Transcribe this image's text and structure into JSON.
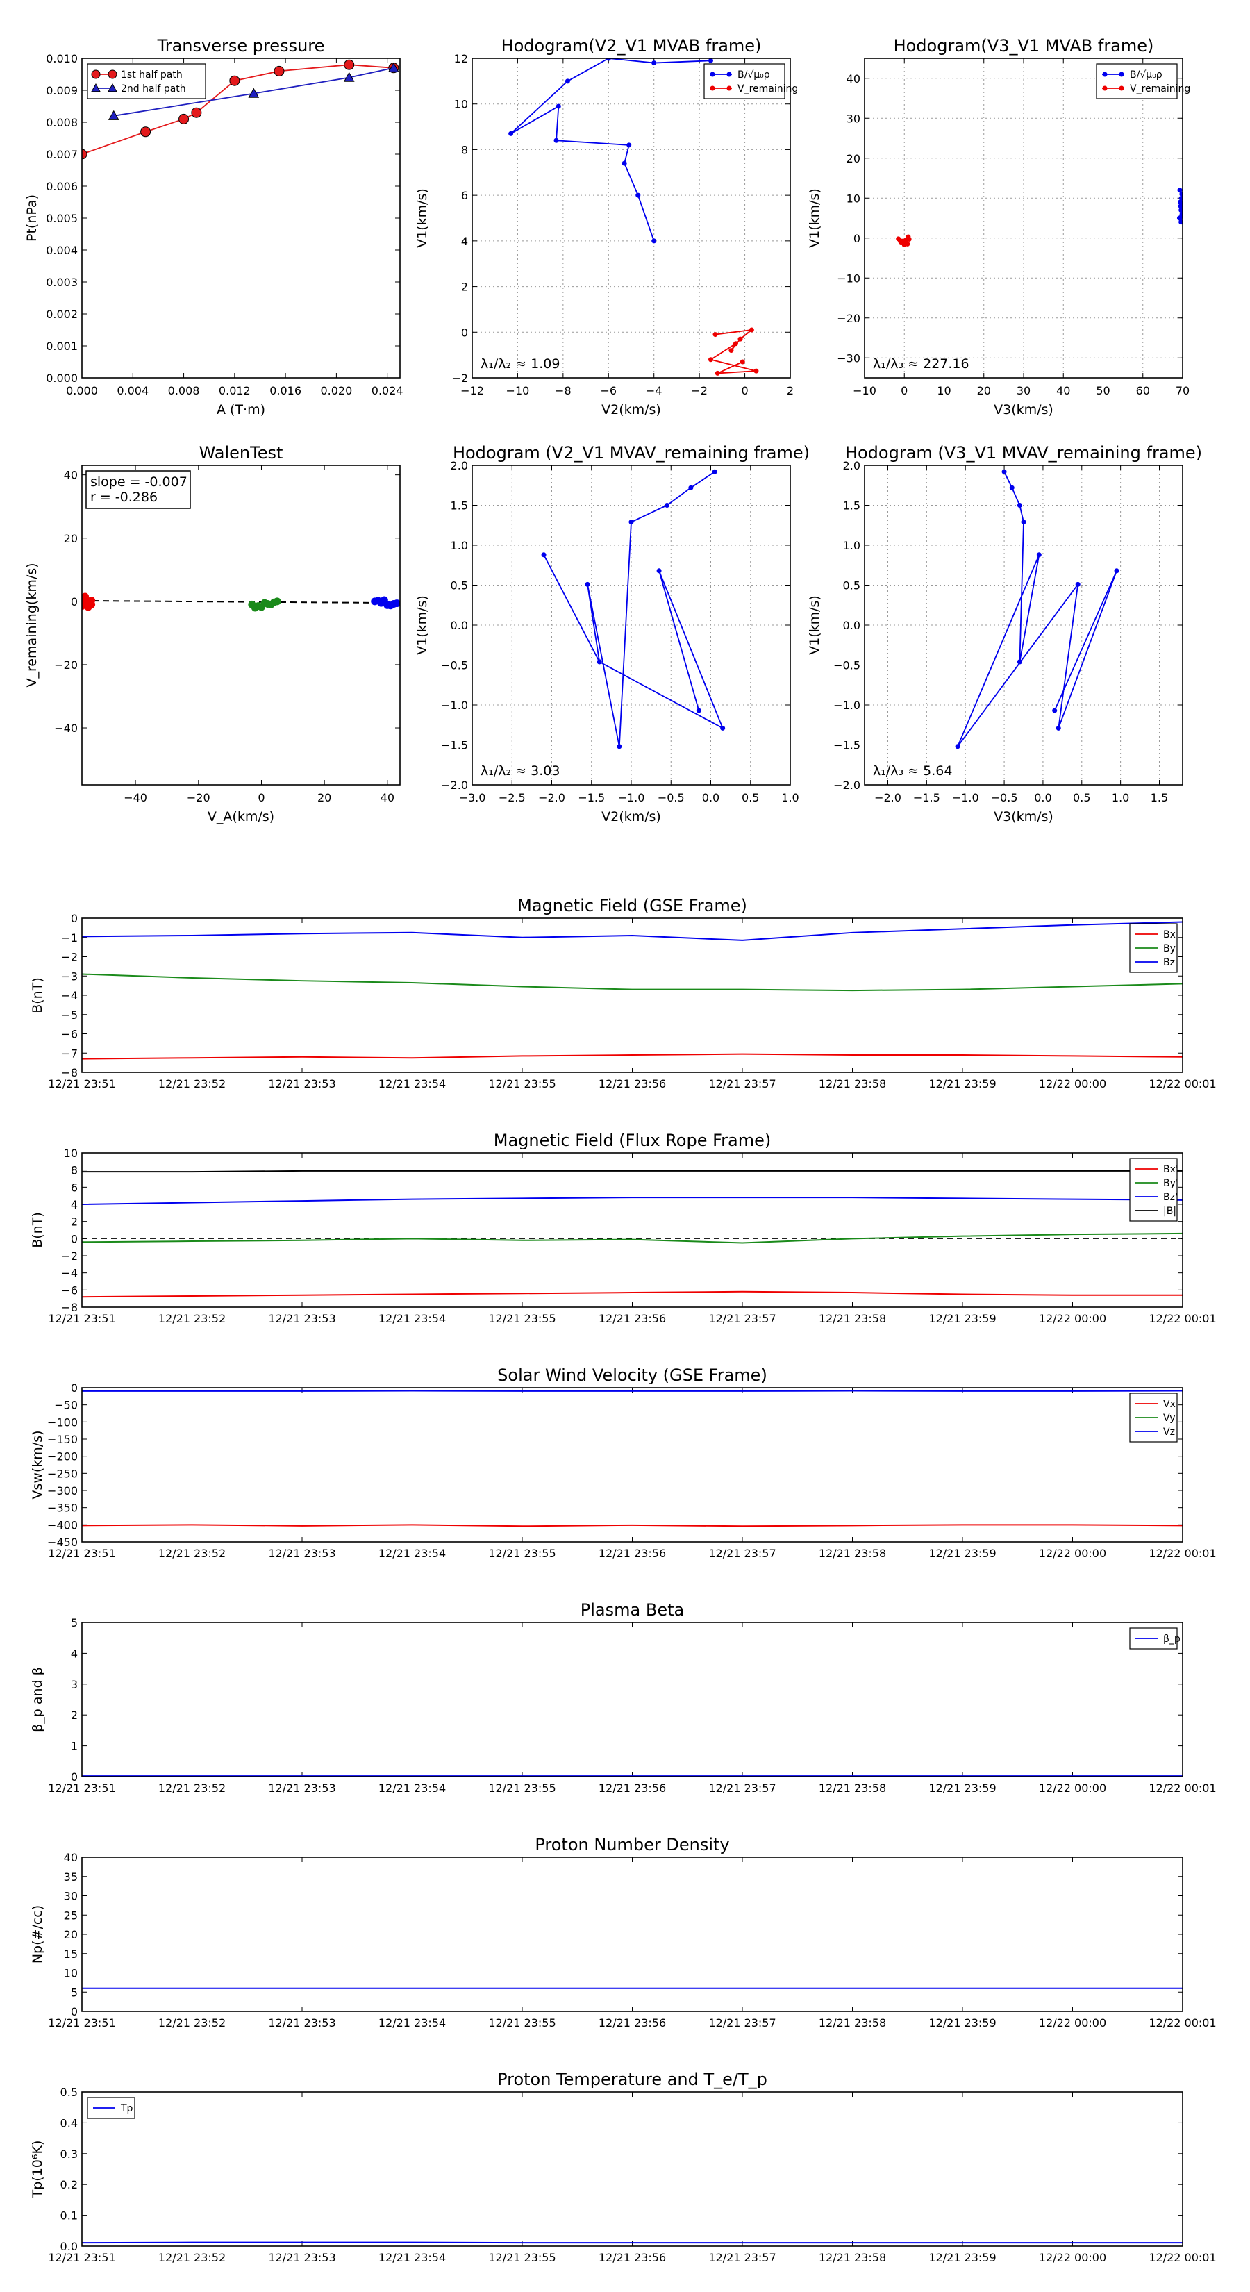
{
  "chart_data": [
    {
      "id": "tp",
      "type": "scatter",
      "title": "Transverse pressure",
      "xlabel": "A (T·m)",
      "ylabel": "Pt(nPa)",
      "xlim": [
        0.0,
        0.025
      ],
      "ylim": [
        0.0,
        0.01
      ],
      "xticks": [
        "0.000",
        "0.004",
        "0.008",
        "0.012",
        "0.016",
        "0.020",
        "0.024"
      ],
      "yticks": [
        "0.000",
        "0.001",
        "0.002",
        "0.003",
        "0.004",
        "0.005",
        "0.006",
        "0.007",
        "0.008",
        "0.009",
        "0.010"
      ],
      "grid": false,
      "legend": "top-left",
      "series": [
        {
          "name": "1st half path",
          "color": "#e41a1c",
          "marker": "circle",
          "x": [
            0.0,
            0.005,
            0.008,
            0.009,
            0.012,
            0.0155,
            0.021,
            0.0245
          ],
          "y": [
            0.007,
            0.0077,
            0.0081,
            0.0083,
            0.0093,
            0.0096,
            0.0098,
            0.0097
          ]
        },
        {
          "name": "2nd half path",
          "color": "#1f1fbf",
          "marker": "triangle",
          "x": [
            0.0025,
            0.0135,
            0.021,
            0.0245
          ],
          "y": [
            0.0082,
            0.0089,
            0.0094,
            0.0097
          ]
        }
      ]
    },
    {
      "id": "h1",
      "type": "line",
      "title": "Hodogram(V2_V1 MVAB frame)",
      "xlabel": "V2(km/s)",
      "ylabel": "V1(km/s)",
      "xlim": [
        -12,
        2
      ],
      "ylim": [
        -2,
        12
      ],
      "xticks": [
        "−12",
        "−10",
        "−8",
        "−6",
        "−4",
        "−2",
        "0",
        "2"
      ],
      "yticks": [
        "−2",
        "0",
        "2",
        "4",
        "6",
        "8",
        "10",
        "12"
      ],
      "grid": true,
      "legend": "top-right",
      "annotation": "λ₁/λ₂ ≈ 1.09",
      "series": [
        {
          "name": "B/√μ₀ρ",
          "color": "#0000ee",
          "x": [
            -4,
            -4.7,
            -5.3,
            -5.1,
            -8.3,
            -8.2,
            -10.3,
            -7.8,
            -6,
            -4,
            -1.5
          ],
          "y": [
            4,
            6,
            7.4,
            8.2,
            8.4,
            9.9,
            8.7,
            11,
            12,
            11.8,
            11.9
          ]
        },
        {
          "name": "V_remaining",
          "color": "#ee0000",
          "x": [
            -1.3,
            0.3,
            -0.2,
            -0.6,
            -0.4,
            -1.5,
            0.5,
            -1.2,
            -0.1
          ],
          "y": [
            -0.1,
            0.1,
            -0.3,
            -0.8,
            -0.5,
            -1.2,
            -1.7,
            -1.8,
            -1.3
          ]
        }
      ]
    },
    {
      "id": "h2",
      "type": "line",
      "title": "Hodogram(V3_V1 MVAB frame)",
      "xlabel": "V3(km/s)",
      "ylabel": "V1(km/s)",
      "xlim": [
        -10,
        70
      ],
      "ylim": [
        -35,
        45
      ],
      "xticks": [
        "−10",
        "0",
        "10",
        "20",
        "30",
        "40",
        "50",
        "60",
        "70"
      ],
      "yticks": [
        "−30",
        "−20",
        "−10",
        "0",
        "10",
        "20",
        "30",
        "40"
      ],
      "grid": true,
      "legend": "top-right",
      "annotation": "λ₁/λ₃ ≈ 227.16",
      "series": [
        {
          "name": "B/√μ₀ρ",
          "color": "#0000ee",
          "x": [
            69.2,
            69.6,
            69.4,
            69.8,
            69.3,
            69.7,
            69.5,
            69.9,
            69.6
          ],
          "y": [
            5,
            7,
            9,
            11,
            12,
            10,
            8,
            6,
            4
          ]
        },
        {
          "name": "V_remaining",
          "color": "#ee0000",
          "x": [
            -1.5,
            0.5,
            -0.5,
            0.8,
            -1,
            1,
            0,
            -0.8,
            1.2
          ],
          "y": [
            -0.2,
            -0.5,
            -1,
            -1.5,
            -0.8,
            0.3,
            -1.7,
            -1.2,
            -0.3
          ]
        }
      ]
    },
    {
      "id": "walen",
      "type": "scatter",
      "title": "WalenTest",
      "xlabel": "V_A(km/s)",
      "ylabel": "V_remaining(km/s)",
      "xlim": [
        -57,
        44
      ],
      "ylim": [
        -58,
        43
      ],
      "xticks": [
        "−40",
        "−20",
        "0",
        "20",
        "40"
      ],
      "yticks": [
        "−40",
        "−20",
        "0",
        "20",
        "40"
      ],
      "grid": false,
      "stats": [
        "slope = -0.007",
        "r = -0.286"
      ],
      "fit": {
        "slope": -0.007,
        "intercept": -0.2
      },
      "series": [
        {
          "name": "",
          "color": "#ee0000",
          "x": [
            -56,
            -55,
            -57,
            -54,
            -56,
            -55,
            -57,
            -54,
            -56
          ],
          "y": [
            1,
            -0.5,
            0.5,
            -1,
            0,
            -1.8,
            -1.5,
            0.3,
            1.5
          ]
        },
        {
          "name": "",
          "color": "#1a8a1a",
          "x": [
            -3,
            -1,
            1,
            3,
            -2,
            0,
            2,
            4,
            5
          ],
          "y": [
            -1,
            -1.5,
            -0.5,
            -1,
            -2,
            -1.8,
            -0.8,
            -0.3,
            0
          ]
        },
        {
          "name": "",
          "color": "#0000ee",
          "x": [
            36,
            38,
            40,
            42,
            37,
            39,
            41,
            43,
            40
          ],
          "y": [
            0,
            -0.5,
            -1,
            -0.8,
            0.2,
            0.4,
            -1.3,
            -0.6,
            -1.2
          ]
        }
      ]
    },
    {
      "id": "h3",
      "type": "line",
      "title": "Hodogram (V2_V1 MVAV_remaining frame)",
      "xlabel": "V2(km/s)",
      "ylabel": "V1(km/s)",
      "xlim": [
        -3.0,
        1.0
      ],
      "ylim": [
        -2.0,
        2.0
      ],
      "xticks": [
        "−3.0",
        "−2.5",
        "−2.0",
        "−1.5",
        "−1.0",
        "−0.5",
        "0.0",
        "0.5",
        "1.0"
      ],
      "yticks": [
        "−2.0",
        "−1.5",
        "−1.0",
        "−0.5",
        "0.0",
        "0.5",
        "1.0",
        "1.5",
        "2.0"
      ],
      "grid": true,
      "annotation": "λ₁/λ₂ ≈ 3.03",
      "series": [
        {
          "name": "",
          "color": "#0000ee",
          "x": [
            0.05,
            -0.25,
            -0.55,
            -1.0,
            -1.15,
            -1.55,
            -1.4,
            -2.1,
            -1.4,
            0.15,
            -0.65,
            -0.15
          ],
          "y": [
            1.92,
            1.72,
            1.5,
            1.29,
            -1.52,
            0.51,
            -0.46,
            0.88,
            -0.46,
            -1.29,
            0.68,
            -1.07
          ]
        }
      ]
    },
    {
      "id": "h4",
      "type": "line",
      "title": "Hodogram (V3_V1 MVAV_remaining frame)",
      "xlabel": "V3(km/s)",
      "ylabel": "V1(km/s)",
      "xlim": [
        -2.3,
        1.8
      ],
      "ylim": [
        -2.0,
        2.0
      ],
      "xticks": [
        "−2.0",
        "−1.5",
        "−1.0",
        "−0.5",
        "0.0",
        "0.5",
        "1.0",
        "1.5"
      ],
      "yticks": [
        "−2.0",
        "−1.5",
        "−1.0",
        "−0.5",
        "0.0",
        "0.5",
        "1.0",
        "1.5",
        "2.0"
      ],
      "grid": true,
      "annotation": "λ₁/λ₃ ≈ 5.64",
      "series": [
        {
          "name": "",
          "color": "#0000ee",
          "x": [
            -0.5,
            -0.4,
            -0.3,
            -0.25,
            -0.3,
            -0.3,
            -0.05,
            -1.1,
            0.45,
            0.2,
            0.95,
            0.15
          ],
          "y": [
            1.92,
            1.72,
            1.5,
            1.29,
            -0.46,
            -0.46,
            0.88,
            -1.52,
            0.51,
            -1.29,
            0.68,
            -1.07
          ]
        }
      ]
    },
    {
      "id": "bgse",
      "type": "line",
      "title": "Magnetic Field (GSE Frame)",
      "ylabel": "B(nT)",
      "ylim": [
        -8,
        0
      ],
      "yticks": [
        "−8",
        "−7",
        "−6",
        "−5",
        "−4",
        "−3",
        "−2",
        "−1",
        "0"
      ],
      "grid": false,
      "legend": "top-right",
      "categories": [
        "12/21 23:51",
        "12/21 23:52",
        "12/21 23:53",
        "12/21 23:54",
        "12/21 23:55",
        "12/21 23:56",
        "12/21 23:57",
        "12/21 23:58",
        "12/21 23:59",
        "12/22 00:00",
        "12/22 00:01"
      ],
      "series": [
        {
          "name": "Bx",
          "color": "#ee0000",
          "values": [
            -7.3,
            -7.25,
            -7.2,
            -7.25,
            -7.15,
            -7.1,
            -7.05,
            -7.1,
            -7.1,
            -7.15,
            -7.2
          ]
        },
        {
          "name": "By",
          "color": "#1a8a1a",
          "values": [
            -2.9,
            -3.1,
            -3.25,
            -3.35,
            -3.55,
            -3.7,
            -3.7,
            -3.75,
            -3.7,
            -3.55,
            -3.4
          ]
        },
        {
          "name": "Bz",
          "color": "#0000ee",
          "values": [
            -0.95,
            -0.9,
            -0.8,
            -0.75,
            -1.0,
            -0.9,
            -1.15,
            -0.75,
            -0.55,
            -0.35,
            -0.2
          ]
        }
      ]
    },
    {
      "id": "bfr",
      "type": "line",
      "title": "Magnetic Field (Flux Rope Frame)",
      "ylabel": "B(nT)",
      "ylim": [
        -8,
        10
      ],
      "yticks": [
        "−8",
        "−6",
        "−4",
        "−2",
        "0",
        "2",
        "4",
        "6",
        "8",
        "10"
      ],
      "grid": false,
      "legend": "top-right",
      "categories": [
        "12/21 23:51",
        "12/21 23:52",
        "12/21 23:53",
        "12/21 23:54",
        "12/21 23:55",
        "12/21 23:56",
        "12/21 23:57",
        "12/21 23:58",
        "12/21 23:59",
        "12/22 00:00",
        "12/22 00:01"
      ],
      "series": [
        {
          "name": "Bx'",
          "color": "#ee0000",
          "values": [
            -6.8,
            -6.7,
            -6.6,
            -6.5,
            -6.4,
            -6.3,
            -6.2,
            -6.3,
            -6.5,
            -6.6,
            -6.6
          ]
        },
        {
          "name": "By'",
          "color": "#1a8a1a",
          "values": [
            -0.4,
            -0.3,
            -0.2,
            0.0,
            -0.2,
            -0.1,
            -0.5,
            0.0,
            0.3,
            0.5,
            0.6
          ]
        },
        {
          "name": "Bz'",
          "color": "#0000ee",
          "values": [
            4.0,
            4.2,
            4.4,
            4.6,
            4.7,
            4.8,
            4.8,
            4.8,
            4.7,
            4.6,
            4.5
          ]
        },
        {
          "name": "|B|",
          "color": "#000000",
          "values": [
            7.8,
            7.8,
            7.9,
            7.9,
            7.9,
            7.9,
            7.9,
            7.9,
            7.9,
            7.9,
            7.9
          ]
        }
      ]
    },
    {
      "id": "vsw",
      "type": "line",
      "title": "Solar Wind Velocity (GSE Frame)",
      "ylabel": "Vsw(km/s)",
      "ylim": [
        -450,
        0
      ],
      "yticks": [
        "−450",
        "−400",
        "−350",
        "−300",
        "−250",
        "−200",
        "−150",
        "−100",
        "−50",
        "0"
      ],
      "grid": false,
      "legend": "top-right",
      "categories": [
        "12/21 23:51",
        "12/21 23:52",
        "12/21 23:53",
        "12/21 23:54",
        "12/21 23:55",
        "12/21 23:56",
        "12/21 23:57",
        "12/21 23:58",
        "12/21 23:59",
        "12/22 00:00",
        "12/22 00:01"
      ],
      "series": [
        {
          "name": "Vx",
          "color": "#ee0000",
          "values": [
            -402,
            -400,
            -403,
            -400,
            -404,
            -401,
            -404,
            -402,
            -400,
            -400,
            -402
          ]
        },
        {
          "name": "Vy",
          "color": "#1a8a1a",
          "values": [
            -8,
            -8,
            -9,
            -8,
            -8,
            -8,
            -9,
            -8,
            -8,
            -8,
            -8
          ]
        },
        {
          "name": "Vz",
          "color": "#0000ee",
          "values": [
            -10,
            -10,
            -10,
            -9,
            -10,
            -10,
            -10,
            -9,
            -10,
            -10,
            -9
          ]
        }
      ]
    },
    {
      "id": "beta",
      "type": "line",
      "title": "Plasma Beta",
      "ylabel": "β_p and β",
      "ylim": [
        0,
        5
      ],
      "yticks": [
        "0",
        "1",
        "2",
        "3",
        "4",
        "5"
      ],
      "grid": false,
      "legend": "top-right",
      "categories": [
        "12/21 23:51",
        "12/21 23:52",
        "12/21 23:53",
        "12/21 23:54",
        "12/21 23:55",
        "12/21 23:56",
        "12/21 23:57",
        "12/21 23:58",
        "12/21 23:59",
        "12/22 00:00",
        "12/22 00:01"
      ],
      "series": [
        {
          "name": "β_p",
          "color": "#0000ee",
          "values": [
            0.02,
            0.02,
            0.02,
            0.02,
            0.02,
            0.02,
            0.02,
            0.02,
            0.02,
            0.02,
            0.02
          ]
        }
      ]
    },
    {
      "id": "np",
      "type": "line",
      "title": "Proton Number Density",
      "ylabel": "Np(#/cc)",
      "ylim": [
        0,
        40
      ],
      "yticks": [
        "0",
        "5",
        "10",
        "15",
        "20",
        "25",
        "30",
        "35",
        "40"
      ],
      "grid": false,
      "categories": [
        "12/21 23:51",
        "12/21 23:52",
        "12/21 23:53",
        "12/21 23:54",
        "12/21 23:55",
        "12/21 23:56",
        "12/21 23:57",
        "12/21 23:58",
        "12/21 23:59",
        "12/22 00:00",
        "12/22 00:01"
      ],
      "series": [
        {
          "name": "",
          "color": "#0000ee",
          "values": [
            6,
            6,
            6,
            6,
            6,
            6,
            6,
            6,
            6,
            6,
            6
          ]
        }
      ]
    },
    {
      "id": "tpp",
      "type": "line",
      "title": "Proton Temperature and T_e/T_p",
      "ylabel": "Tp(10⁶K)",
      "ylim": [
        0,
        0.5
      ],
      "yticks": [
        "0.0",
        "0.1",
        "0.2",
        "0.3",
        "0.4",
        "0.5"
      ],
      "grid": false,
      "legend": "top-left",
      "categories": [
        "12/21 23:51",
        "12/21 23:52",
        "12/21 23:53",
        "12/21 23:54",
        "12/21 23:55",
        "12/21 23:56",
        "12/21 23:57",
        "12/21 23:58",
        "12/21 23:59",
        "12/22 00:00",
        "12/22 00:01"
      ],
      "series": [
        {
          "name": "Tp",
          "color": "#0000ee",
          "values": [
            0.011,
            0.012,
            0.012,
            0.012,
            0.011,
            0.011,
            0.011,
            0.011,
            0.011,
            0.011,
            0.011
          ]
        }
      ]
    }
  ]
}
